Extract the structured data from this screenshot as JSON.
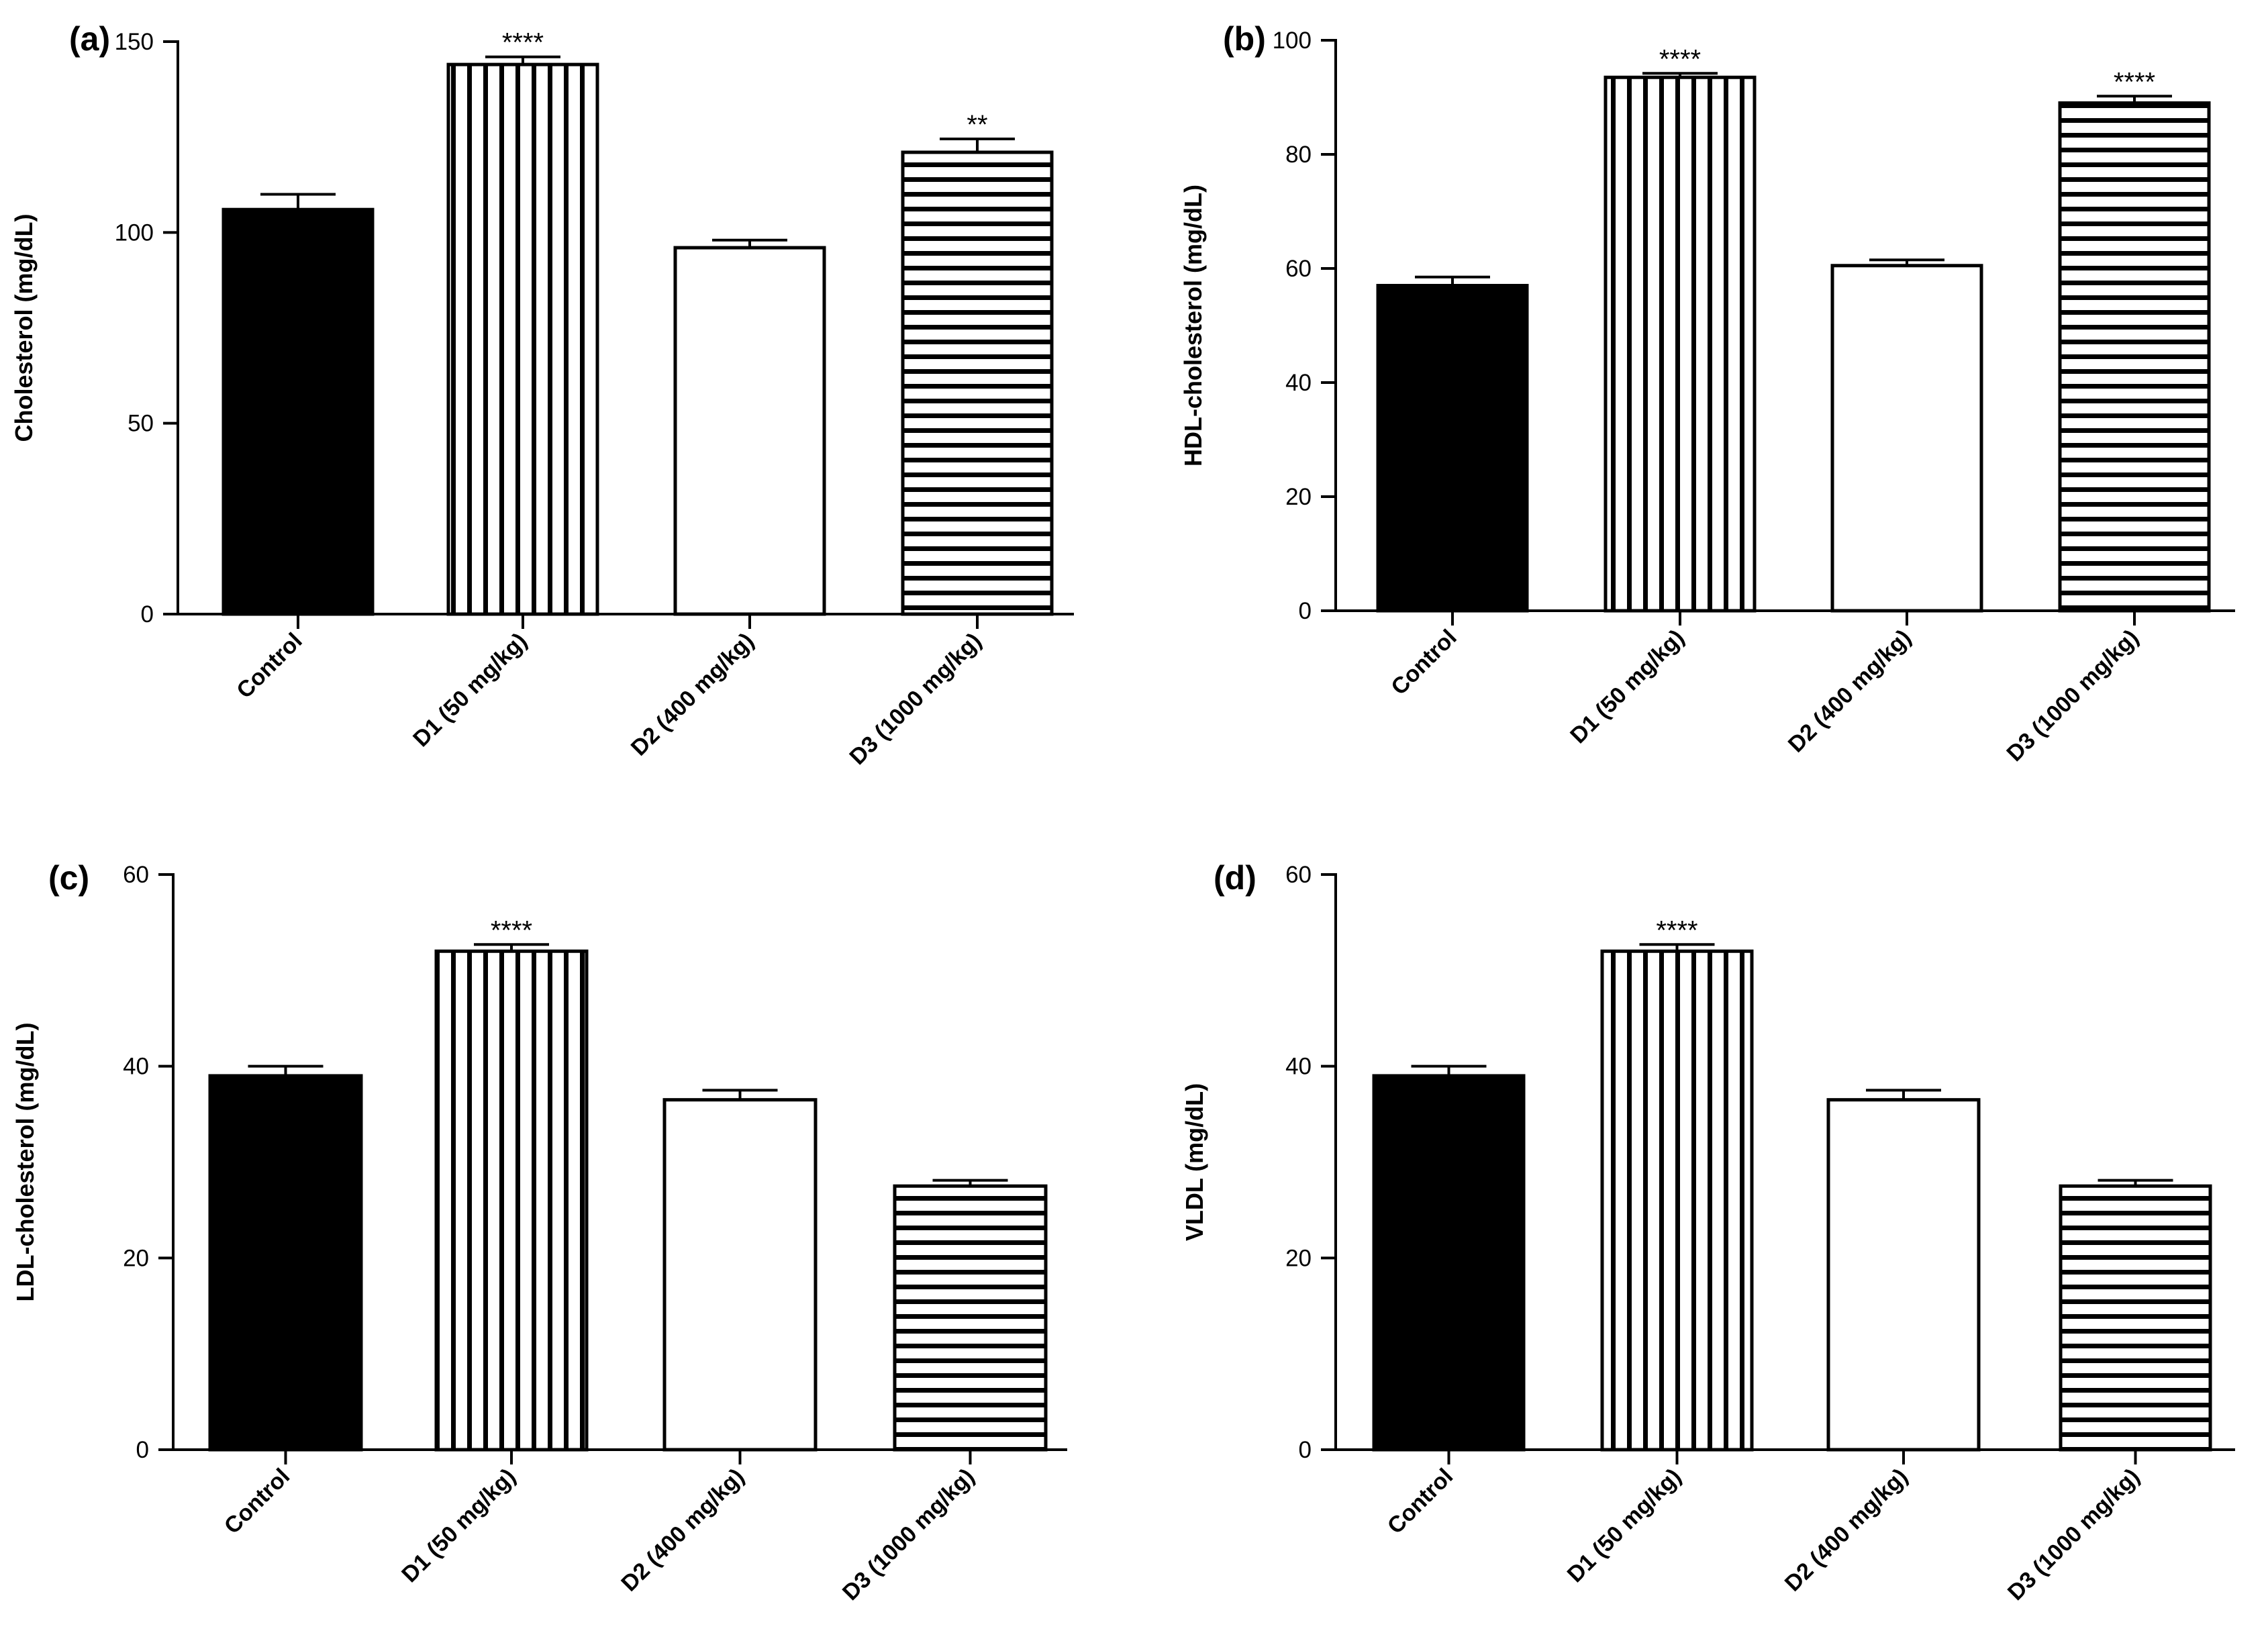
{
  "chart_data": [
    {
      "panel_label": "(a)",
      "type": "bar",
      "ylabel": "Cholesterol (mg/dL)",
      "ylim": [
        0,
        150
      ],
      "yticks": [
        0,
        50,
        100,
        150
      ],
      "categories": [
        "Control",
        "D1 (50 mg/kg)",
        "D2 (400 mg/kg)",
        "D3 (1000 mg/kg)"
      ],
      "values": [
        106,
        144,
        96,
        121
      ],
      "errors": [
        4,
        2,
        2,
        3.5
      ],
      "significance": [
        "",
        "****",
        "",
        "**"
      ],
      "patterns": [
        "solid",
        "vertical",
        "open",
        "horizontal"
      ]
    },
    {
      "panel_label": "(b)",
      "type": "bar",
      "ylabel": "HDL-cholesterol (mg/dL)",
      "ylim": [
        0,
        100
      ],
      "yticks": [
        0,
        20,
        40,
        60,
        80,
        100
      ],
      "categories": [
        "Control",
        "D1 (50 mg/kg)",
        "D2 (400 mg/kg)",
        "D3 (1000 mg/kg)"
      ],
      "values": [
        57,
        93.5,
        60.5,
        89
      ],
      "errors": [
        1.5,
        0.7,
        1,
        1.2
      ],
      "significance": [
        "",
        "****",
        "",
        "****"
      ],
      "patterns": [
        "solid",
        "vertical",
        "open",
        "horizontal"
      ]
    },
    {
      "panel_label": "(c)",
      "type": "bar",
      "ylabel": "LDL-cholesterol (mg/dL)",
      "ylim": [
        0,
        60
      ],
      "yticks": [
        0,
        20,
        40,
        60
      ],
      "categories": [
        "Control",
        "D1 (50 mg/kg)",
        "D2 (400 mg/kg)",
        "D3 (1000 mg/kg)"
      ],
      "values": [
        39,
        52,
        36.5,
        27.5
      ],
      "errors": [
        1,
        0.7,
        1,
        0.6
      ],
      "significance": [
        "",
        "****",
        "",
        ""
      ],
      "patterns": [
        "solid",
        "vertical",
        "open",
        "horizontal"
      ]
    },
    {
      "panel_label": "(d)",
      "type": "bar",
      "ylabel": "VLDL (mg/dL)",
      "ylim": [
        0,
        60
      ],
      "yticks": [
        0,
        20,
        40,
        60
      ],
      "categories": [
        "Control",
        "D1 (50 mg/kg)",
        "D2 (400 mg/kg)",
        "D3 (1000 mg/kg)"
      ],
      "values": [
        39,
        52,
        36.5,
        27.5
      ],
      "errors": [
        1,
        0.7,
        1,
        0.6
      ],
      "significance": [
        "",
        "****",
        "",
        ""
      ],
      "patterns": [
        "solid",
        "vertical",
        "open",
        "horizontal"
      ]
    }
  ]
}
